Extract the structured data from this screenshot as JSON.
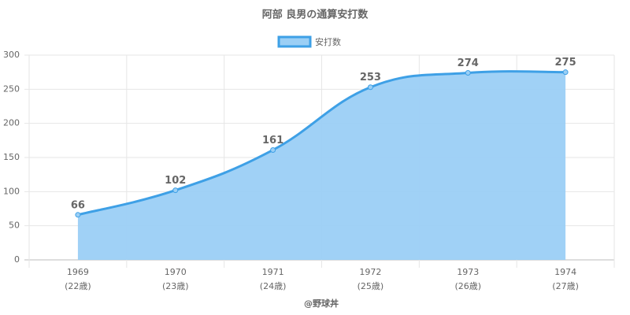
{
  "chart_data": {
    "type": "line",
    "title": "阿部 良男の通算安打数",
    "categories": [
      [
        "1969",
        "(22歳)"
      ],
      [
        "1970",
        "(23歳)"
      ],
      [
        "1971",
        "(24歳)"
      ],
      [
        "1972",
        "(25歳)"
      ],
      [
        "1973",
        "(26歳)"
      ],
      [
        "1974",
        "(27歳)"
      ]
    ],
    "series": [
      {
        "name": "安打数",
        "color": "#3ea0e6",
        "fill": "#9bcff5",
        "values": [
          66,
          102,
          161,
          253,
          274,
          275
        ]
      }
    ],
    "ylim": [
      0,
      300
    ],
    "yticks": [
      0,
      50,
      100,
      150,
      200,
      250,
      300
    ],
    "grid": true,
    "legend": "top",
    "credit": "@野球丼"
  }
}
